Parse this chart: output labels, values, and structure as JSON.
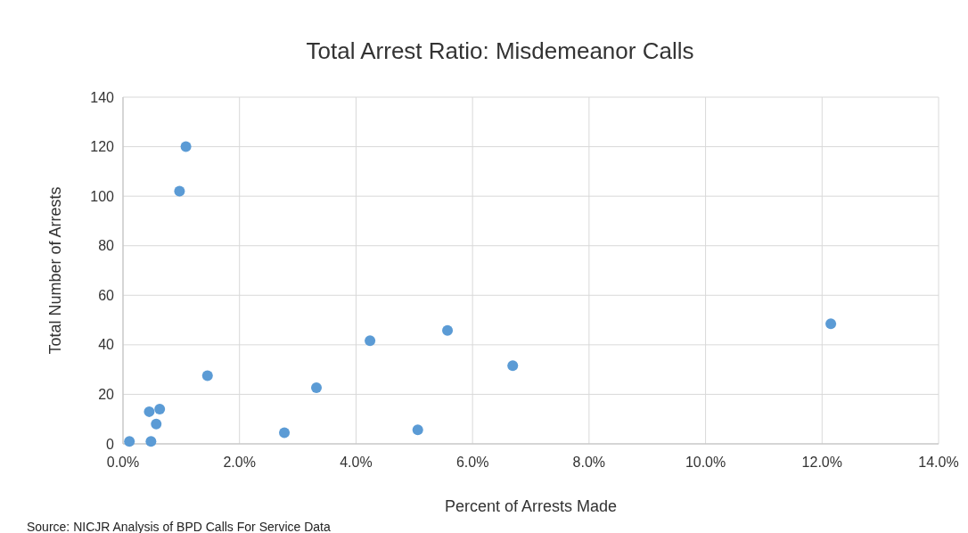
{
  "chart_data": {
    "type": "scatter",
    "title": "Total Arrest Ratio: Misdemeanor Calls",
    "xlabel": "Percent of Arrests Made",
    "ylabel": "Total Number  of Arrests",
    "annotations": [
      "Source: NICJR Analysis of BPD Calls For Service Data"
    ],
    "x": [
      0.11,
      0.48,
      0.45,
      0.63,
      0.57,
      1.08,
      0.97,
      1.45,
      2.77,
      3.32,
      4.24,
      5.57,
      5.06,
      6.69,
      12.15
    ],
    "series": [
      {
        "color": "#5b9bd5",
        "values": [
          1,
          1,
          13,
          14,
          8,
          120,
          102,
          27.5,
          4.5,
          22.7,
          41.7,
          45.8,
          5.7,
          31.6,
          48.5
        ]
      }
    ],
    "xlim": [
      0,
      14
    ],
    "ylim": [
      0,
      140
    ],
    "xticks": [
      {
        "value": 0,
        "label": "0.0%"
      },
      {
        "value": 2,
        "label": "2.0%"
      },
      {
        "value": 4,
        "label": "4.0%"
      },
      {
        "value": 6,
        "label": "6.0%"
      },
      {
        "value": 8,
        "label": "8.0%"
      },
      {
        "value": 10,
        "label": "10.0%"
      },
      {
        "value": 12,
        "label": "12.0%"
      },
      {
        "value": 14,
        "label": "14.0%"
      }
    ],
    "yticks": [
      0,
      20,
      40,
      60,
      80,
      100,
      120,
      140
    ],
    "grid": true,
    "marker": "circle"
  }
}
